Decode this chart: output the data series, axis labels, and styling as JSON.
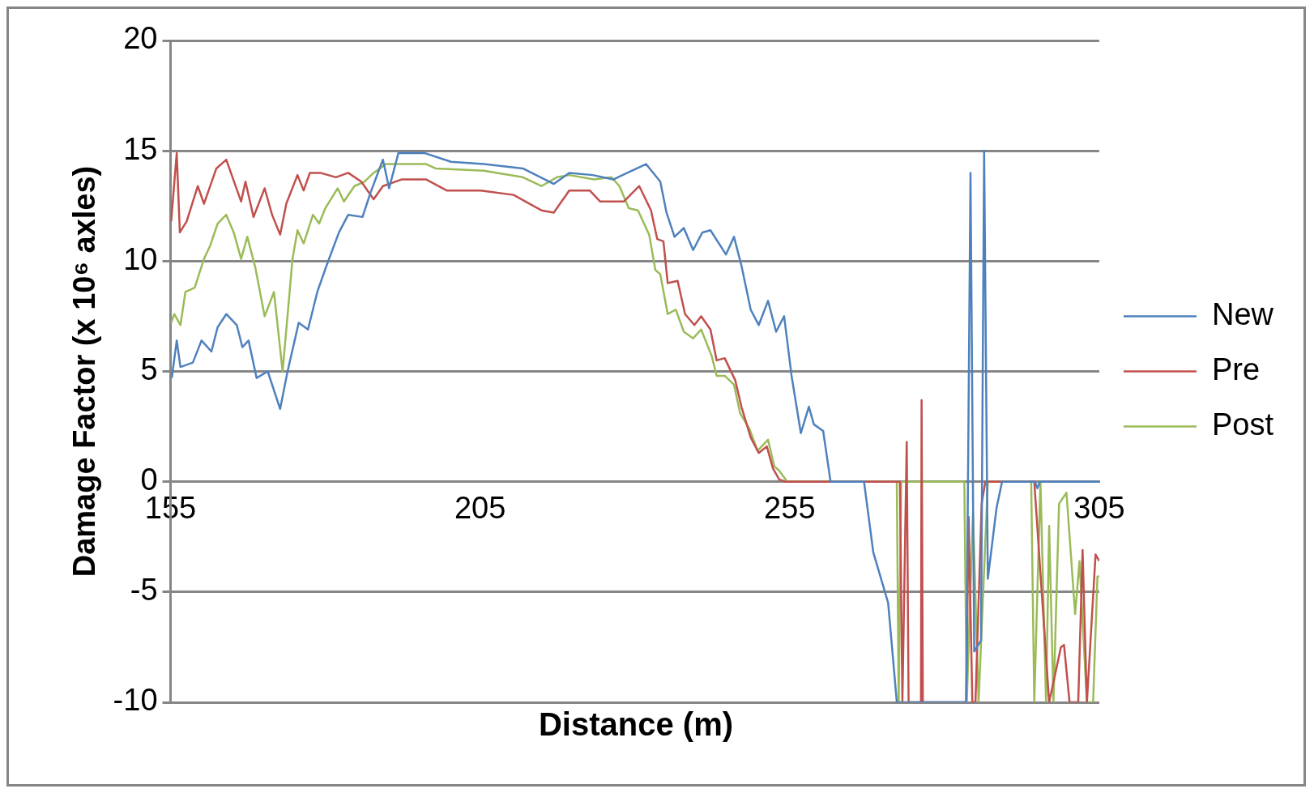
{
  "chart_data": {
    "type": "line",
    "xlabel": "Distance (m)",
    "ylabel": "Damage Factor (x 10⁶ axles)",
    "xlim": [
      155,
      305
    ],
    "xticks": [
      155,
      205,
      255,
      305
    ],
    "ylim": [
      -10,
      20
    ],
    "yticks": [
      -10,
      -5,
      0,
      5,
      10,
      15,
      20
    ],
    "grid": "y",
    "legend": "right",
    "marker": "none",
    "line_style": "solid",
    "series": [
      {
        "name": "New",
        "color": "#4f81bd",
        "x": [
          155.2,
          156,
          156.6,
          158.6,
          160,
          161.6,
          162.6,
          164,
          165.7,
          166.6,
          167.6,
          168.9,
          170.7,
          172.7,
          173.9,
          175.7,
          177.2,
          178.7,
          180.2,
          182.2,
          183.7,
          186,
          187.3,
          189.3,
          190.3,
          191.8,
          196,
          200.3,
          205.6,
          211.9,
          216.9,
          219.4,
          223.2,
          226.5,
          231.8,
          234.1,
          235.1,
          236.4,
          237.9,
          239.4,
          240.9,
          242.2,
          244.7,
          246,
          247.2,
          248.7,
          250,
          251.5,
          252.8,
          254.1,
          255.3,
          256.8,
          258.1,
          258.9,
          260.4,
          261.6,
          267,
          268.5,
          270.9,
          272.3,
          283.5,
          284.2,
          284.8,
          285.9,
          286.4,
          287,
          288.4,
          289.3,
          294.6,
          295,
          295.4,
          305
        ],
        "values": [
          4.7,
          6.4,
          5.2,
          5.4,
          6.4,
          5.9,
          7.0,
          7.6,
          7.1,
          6.1,
          6.4,
          4.7,
          5.0,
          3.3,
          5.0,
          7.2,
          6.9,
          8.6,
          9.8,
          11.3,
          12.1,
          12.0,
          13.1,
          14.6,
          13.3,
          14.9,
          14.9,
          14.5,
          14.4,
          14.2,
          13.5,
          14.0,
          13.9,
          13.7,
          14.4,
          13.6,
          12.2,
          11.1,
          11.5,
          10.5,
          11.3,
          11.4,
          10.3,
          11.1,
          9.8,
          7.8,
          7.1,
          8.2,
          6.8,
          7.5,
          4.8,
          2.2,
          3.4,
          2.6,
          2.3,
          0,
          0,
          -3.2,
          -5.5,
          -10,
          -10,
          14,
          -7.7,
          -7.2,
          15,
          -4.4,
          -1.2,
          0,
          0,
          -0.3,
          0,
          0
        ]
      },
      {
        "name": "Pre",
        "color": "#c0504d",
        "x": [
          155.1,
          156,
          156.5,
          157.6,
          159.4,
          160.4,
          162.4,
          164,
          166.4,
          167.1,
          168.4,
          170.2,
          171.4,
          172.7,
          173.7,
          175.5,
          176.5,
          177.5,
          179.2,
          181.7,
          183.7,
          185.8,
          187.8,
          189.3,
          192.3,
          196.3,
          199.6,
          205.1,
          210.4,
          214.9,
          216.9,
          219.4,
          222.7,
          224.4,
          228.2,
          230.7,
          232.6,
          233.6,
          234.6,
          235.3,
          236.9,
          238.1,
          239.6,
          240.7,
          242.2,
          243.2,
          244.5,
          246.2,
          247.2,
          248.7,
          250,
          251.3,
          252.3,
          253.3,
          254.3,
          272.8,
          273.2,
          273.9,
          274.2,
          276.2,
          276.3,
          276.5,
          283.5,
          283.9,
          284.5,
          285,
          286,
          286.6,
          294.5,
          296.9,
          298.8,
          299.3,
          300.2,
          301.6,
          302.3,
          303,
          304.4,
          305
        ],
        "values": [
          11.8,
          14.9,
          11.3,
          11.8,
          13.4,
          12.6,
          14.2,
          14.6,
          12.7,
          13.6,
          12.0,
          13.3,
          12.1,
          11.2,
          12.6,
          13.9,
          13.2,
          14.0,
          14.0,
          13.8,
          14.0,
          13.6,
          12.8,
          13.4,
          13.7,
          13.7,
          13.2,
          13.2,
          13.0,
          12.3,
          12.2,
          13.2,
          13.2,
          12.7,
          12.7,
          13.4,
          12.3,
          11.0,
          10.9,
          9.0,
          9.1,
          7.6,
          7.1,
          7.5,
          6.9,
          5.5,
          5.6,
          4.6,
          3.4,
          2.0,
          1.3,
          1.6,
          0.6,
          0.1,
          0,
          0,
          -10,
          1.8,
          -10,
          -10,
          3.7,
          -10,
          -10,
          -1.6,
          -10,
          -10,
          -1,
          0,
          0,
          -10,
          -7.5,
          -7.4,
          -10,
          -10,
          -3.1,
          -10,
          -3.3,
          -3.6
        ]
      },
      {
        "name": "Post",
        "color": "#9bbb59",
        "x": [
          155.1,
          155.6,
          156.6,
          157.4,
          158.9,
          160.4,
          161.4,
          162.6,
          164,
          165.2,
          166.4,
          167.4,
          168.7,
          170.2,
          171.7,
          173.1,
          174.7,
          175.5,
          176.5,
          178,
          179,
          180,
          182,
          183,
          184.7,
          186.3,
          187.8,
          189.8,
          196.3,
          197.8,
          205.6,
          211.9,
          214.9,
          217.4,
          219.4,
          223.4,
          226.2,
          227.5,
          229,
          230.5,
          232.3,
          233.3,
          234.1,
          235.3,
          236.6,
          237.9,
          239.4,
          240.7,
          242.4,
          243.2,
          244.5,
          246,
          247,
          248.5,
          249.8,
          251.5,
          252.5,
          253.3,
          254.6,
          272.3,
          272.6,
          273,
          283.2,
          283.6,
          284.6,
          285.5,
          287,
          294,
          294.5,
          295.5,
          296.4,
          296.9,
          297.6,
          298.5,
          299.7,
          301.1,
          301.8,
          303,
          304,
          304.7,
          305
        ],
        "values": [
          7.2,
          7.6,
          7.1,
          8.6,
          8.8,
          10.1,
          10.7,
          11.7,
          12.1,
          11.3,
          10.1,
          11.1,
          9.7,
          7.5,
          8.6,
          5.0,
          10.1,
          11.4,
          10.8,
          12.1,
          11.7,
          12.4,
          13.3,
          12.7,
          13.4,
          13.6,
          14.0,
          14.4,
          14.4,
          14.2,
          14.1,
          13.8,
          13.4,
          13.8,
          13.9,
          13.7,
          13.8,
          13.4,
          12.4,
          12.3,
          11.2,
          9.6,
          9.4,
          7.6,
          7.8,
          6.8,
          6.5,
          6.9,
          5.7,
          4.8,
          4.8,
          4.4,
          3.1,
          2.4,
          1.4,
          1.9,
          0.7,
          0.5,
          0,
          0,
          -10,
          0,
          0,
          -10,
          -1.4,
          -10,
          0,
          0,
          -10,
          0,
          -10,
          -2.0,
          -10,
          -1,
          -0.5,
          -6.0,
          -3.6,
          -10,
          -10,
          -4.3,
          -4.3
        ]
      }
    ]
  }
}
